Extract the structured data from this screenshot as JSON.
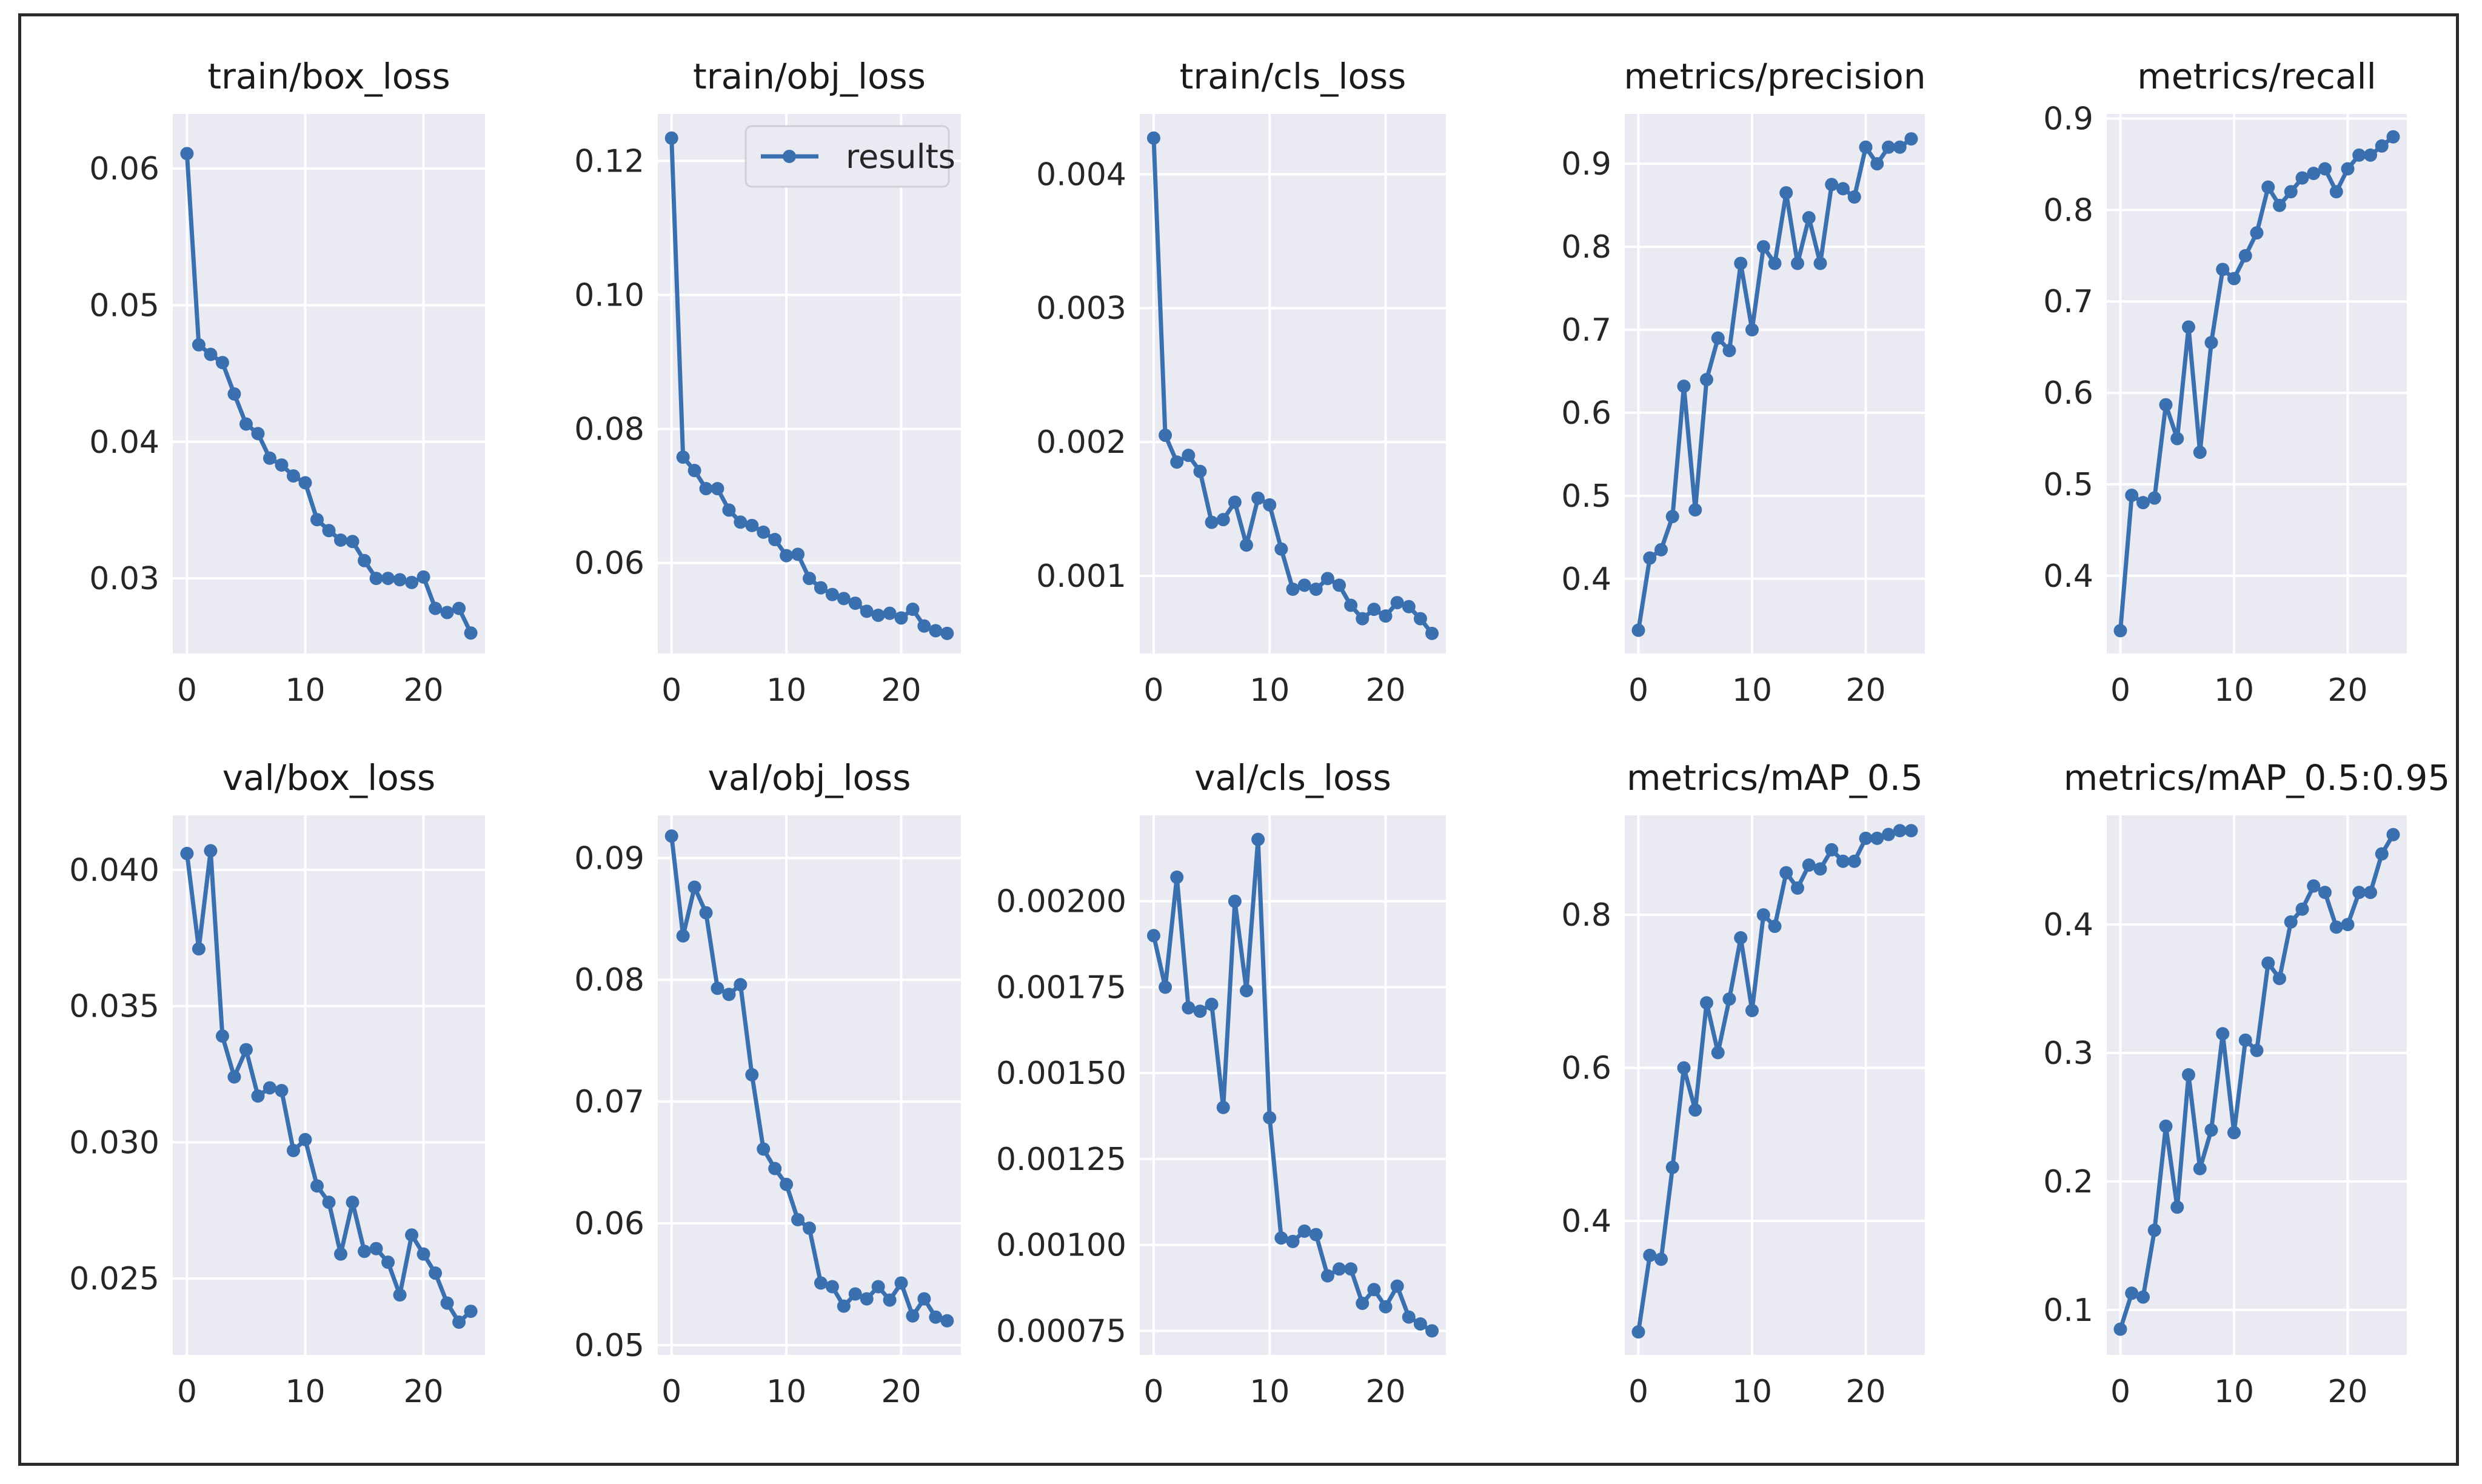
{
  "figure": {
    "legend_label": "results"
  },
  "colors": {
    "plot_bg": "#eaeaf2",
    "grid": "#ffffff",
    "line": "#3a6fb0"
  },
  "chart_data": [
    {
      "type": "line",
      "title": "train/box_loss",
      "x": [
        0,
        1,
        2,
        3,
        4,
        5,
        6,
        7,
        8,
        9,
        10,
        11,
        12,
        13,
        14,
        15,
        16,
        17,
        18,
        19,
        20,
        21,
        22,
        23,
        24
      ],
      "values": [
        0.0611,
        0.0471,
        0.0464,
        0.0458,
        0.0435,
        0.0413,
        0.0406,
        0.0388,
        0.0383,
        0.0375,
        0.037,
        0.0343,
        0.0335,
        0.0328,
        0.0327,
        0.0313,
        0.03,
        0.03,
        0.0299,
        0.0297,
        0.0301,
        0.0278,
        0.0275,
        0.0278,
        0.026
      ],
      "xlim": [
        -1.2,
        25.2
      ],
      "ylim": [
        0.0245,
        0.064
      ],
      "xticks": [
        0,
        10,
        20
      ],
      "xtick_labels": [
        "0",
        "10",
        "20"
      ],
      "yticks": [
        0.03,
        0.04,
        0.05,
        0.06
      ],
      "ytick_labels": [
        "0.03",
        "0.04",
        "0.05",
        "0.06"
      ]
    },
    {
      "type": "line",
      "title": "train/obj_loss",
      "legend": "top-right",
      "x": [
        0,
        1,
        2,
        3,
        4,
        5,
        6,
        7,
        8,
        9,
        10,
        11,
        12,
        13,
        14,
        15,
        16,
        17,
        18,
        19,
        20,
        21,
        22,
        23,
        24
      ],
      "values": [
        0.1234,
        0.0758,
        0.0738,
        0.0711,
        0.0711,
        0.0679,
        0.0661,
        0.0656,
        0.0646,
        0.0635,
        0.0611,
        0.0613,
        0.0577,
        0.0563,
        0.0553,
        0.0547,
        0.054,
        0.0528,
        0.0522,
        0.0525,
        0.0518,
        0.0531,
        0.0506,
        0.0499,
        0.0495
      ],
      "xlim": [
        -1.2,
        25.2
      ],
      "ylim": [
        0.0465,
        0.127
      ],
      "xticks": [
        0,
        10,
        20
      ],
      "xtick_labels": [
        "0",
        "10",
        "20"
      ],
      "yticks": [
        0.06,
        0.08,
        0.1,
        0.12
      ],
      "ytick_labels": [
        "0.06",
        "0.08",
        "0.10",
        "0.12"
      ]
    },
    {
      "type": "line",
      "title": "train/cls_loss",
      "x": [
        0,
        1,
        2,
        3,
        4,
        5,
        6,
        7,
        8,
        9,
        10,
        11,
        12,
        13,
        14,
        15,
        16,
        17,
        18,
        19,
        20,
        21,
        22,
        23,
        24
      ],
      "values": [
        0.00427,
        0.00205,
        0.00185,
        0.0019,
        0.00178,
        0.0014,
        0.00142,
        0.00155,
        0.00123,
        0.00158,
        0.00153,
        0.0012,
        0.0009,
        0.00093,
        0.0009,
        0.00098,
        0.00093,
        0.00078,
        0.00068,
        0.00075,
        0.0007,
        0.0008,
        0.00077,
        0.00068,
        0.00057
      ],
      "xlim": [
        -1.2,
        25.2
      ],
      "ylim": [
        0.00042,
        0.00445
      ],
      "xticks": [
        0,
        10,
        20
      ],
      "xtick_labels": [
        "0",
        "10",
        "20"
      ],
      "yticks": [
        0.001,
        0.002,
        0.003,
        0.004
      ],
      "ytick_labels": [
        "0.001",
        "0.002",
        "0.003",
        "0.004"
      ]
    },
    {
      "type": "line",
      "title": "metrics/precision",
      "x": [
        0,
        1,
        2,
        3,
        4,
        5,
        6,
        7,
        8,
        9,
        10,
        11,
        12,
        13,
        14,
        15,
        16,
        17,
        18,
        19,
        20,
        21,
        22,
        23,
        24
      ],
      "values": [
        0.338,
        0.425,
        0.435,
        0.475,
        0.632,
        0.483,
        0.64,
        0.69,
        0.675,
        0.78,
        0.7,
        0.8,
        0.78,
        0.865,
        0.78,
        0.835,
        0.78,
        0.875,
        0.87,
        0.86,
        0.92,
        0.9,
        0.92,
        0.92,
        0.93
      ],
      "xlim": [
        -1.2,
        25.2
      ],
      "ylim": [
        0.31,
        0.96
      ],
      "xticks": [
        0,
        10,
        20
      ],
      "xtick_labels": [
        "0",
        "10",
        "20"
      ],
      "yticks": [
        0.4,
        0.5,
        0.6,
        0.7,
        0.8,
        0.9
      ],
      "ytick_labels": [
        "0.4",
        "0.5",
        "0.6",
        "0.7",
        "0.8",
        "0.9"
      ]
    },
    {
      "type": "line",
      "title": "metrics/recall",
      "x": [
        0,
        1,
        2,
        3,
        4,
        5,
        6,
        7,
        8,
        9,
        10,
        11,
        12,
        13,
        14,
        15,
        16,
        17,
        18,
        19,
        20,
        21,
        22,
        23,
        24
      ],
      "values": [
        0.34,
        0.488,
        0.48,
        0.485,
        0.587,
        0.55,
        0.672,
        0.535,
        0.655,
        0.735,
        0.725,
        0.75,
        0.775,
        0.825,
        0.805,
        0.82,
        0.835,
        0.84,
        0.845,
        0.82,
        0.845,
        0.86,
        0.86,
        0.87,
        0.88
      ],
      "xlim": [
        -1.2,
        25.2
      ],
      "ylim": [
        0.315,
        0.905
      ],
      "xticks": [
        0,
        10,
        20
      ],
      "xtick_labels": [
        "0",
        "10",
        "20"
      ],
      "yticks": [
        0.4,
        0.5,
        0.6,
        0.7,
        0.8,
        0.9
      ],
      "ytick_labels": [
        "0.4",
        "0.5",
        "0.6",
        "0.7",
        "0.8",
        "0.9"
      ]
    },
    {
      "type": "line",
      "title": "val/box_loss",
      "x": [
        0,
        1,
        2,
        3,
        4,
        5,
        6,
        7,
        8,
        9,
        10,
        11,
        12,
        13,
        14,
        15,
        16,
        17,
        18,
        19,
        20,
        21,
        22,
        23,
        24
      ],
      "values": [
        0.0406,
        0.0371,
        0.0407,
        0.0339,
        0.0324,
        0.0334,
        0.0317,
        0.032,
        0.0319,
        0.0297,
        0.0301,
        0.0284,
        0.0278,
        0.0259,
        0.0278,
        0.026,
        0.0261,
        0.0256,
        0.0244,
        0.0266,
        0.0259,
        0.0252,
        0.0241,
        0.0234,
        0.0238
      ],
      "xlim": [
        -1.2,
        25.2
      ],
      "ylim": [
        0.0222,
        0.042
      ],
      "xticks": [
        0,
        10,
        20
      ],
      "xtick_labels": [
        "0",
        "10",
        "20"
      ],
      "yticks": [
        0.025,
        0.03,
        0.035,
        0.04
      ],
      "ytick_labels": [
        "0.025",
        "0.030",
        "0.035",
        "0.040"
      ]
    },
    {
      "type": "line",
      "title": "val/obj_loss",
      "x": [
        0,
        1,
        2,
        3,
        4,
        5,
        6,
        7,
        8,
        9,
        10,
        11,
        12,
        13,
        14,
        15,
        16,
        17,
        18,
        19,
        20,
        21,
        22,
        23,
        24
      ],
      "values": [
        0.0918,
        0.0836,
        0.0876,
        0.0855,
        0.0793,
        0.0788,
        0.0796,
        0.0722,
        0.0661,
        0.0645,
        0.0632,
        0.0603,
        0.0596,
        0.0551,
        0.0548,
        0.0532,
        0.0542,
        0.0538,
        0.0548,
        0.0537,
        0.0551,
        0.0524,
        0.0538,
        0.0523,
        0.052
      ],
      "xlim": [
        -1.2,
        25.2
      ],
      "ylim": [
        0.0492,
        0.0935
      ],
      "xticks": [
        0,
        10,
        20
      ],
      "xtick_labels": [
        "0",
        "10",
        "20"
      ],
      "yticks": [
        0.05,
        0.06,
        0.07,
        0.08,
        0.09
      ],
      "ytick_labels": [
        "0.05",
        "0.06",
        "0.07",
        "0.08",
        "0.09"
      ]
    },
    {
      "type": "line",
      "title": "val/cls_loss",
      "x": [
        0,
        1,
        2,
        3,
        4,
        5,
        6,
        7,
        8,
        9,
        10,
        11,
        12,
        13,
        14,
        15,
        16,
        17,
        18,
        19,
        20,
        21,
        22,
        23,
        24
      ],
      "values": [
        0.0019,
        0.00175,
        0.00207,
        0.00169,
        0.00168,
        0.0017,
        0.0014,
        0.002,
        0.00174,
        0.00218,
        0.00137,
        0.00102,
        0.00101,
        0.00104,
        0.00103,
        0.00091,
        0.00093,
        0.00093,
        0.00083,
        0.00087,
        0.00082,
        0.00088,
        0.00079,
        0.00077,
        0.00075
      ],
      "xlim": [
        -1.2,
        25.2
      ],
      "ylim": [
        0.00068,
        0.00225
      ],
      "xticks": [
        0,
        10,
        20
      ],
      "xtick_labels": [
        "0",
        "10",
        "20"
      ],
      "yticks": [
        0.00075,
        0.001,
        0.00125,
        0.0015,
        0.00175,
        0.002
      ],
      "ytick_labels": [
        "0.00075",
        "0.00100",
        "0.00125",
        "0.00150",
        "0.00175",
        "0.00200"
      ]
    },
    {
      "type": "line",
      "title": "metrics/mAP_0.5",
      "x": [
        0,
        1,
        2,
        3,
        4,
        5,
        6,
        7,
        8,
        9,
        10,
        11,
        12,
        13,
        14,
        15,
        16,
        17,
        18,
        19,
        20,
        21,
        22,
        23,
        24
      ],
      "values": [
        0.255,
        0.355,
        0.35,
        0.47,
        0.6,
        0.545,
        0.685,
        0.62,
        0.69,
        0.77,
        0.675,
        0.8,
        0.785,
        0.855,
        0.835,
        0.865,
        0.86,
        0.885,
        0.87,
        0.87,
        0.9,
        0.9,
        0.905,
        0.91,
        0.91
      ],
      "xlim": [
        -1.2,
        25.2
      ],
      "ylim": [
        0.225,
        0.93
      ],
      "xticks": [
        0,
        10,
        20
      ],
      "xtick_labels": [
        "0",
        "10",
        "20"
      ],
      "yticks": [
        0.4,
        0.6,
        0.8
      ],
      "ytick_labels": [
        "0.4",
        "0.6",
        "0.8"
      ]
    },
    {
      "type": "line",
      "title": "metrics/mAP_0.5:0.95",
      "x": [
        0,
        1,
        2,
        3,
        4,
        5,
        6,
        7,
        8,
        9,
        10,
        11,
        12,
        13,
        14,
        15,
        16,
        17,
        18,
        19,
        20,
        21,
        22,
        23,
        24
      ],
      "values": [
        0.085,
        0.113,
        0.11,
        0.162,
        0.243,
        0.18,
        0.283,
        0.21,
        0.24,
        0.315,
        0.238,
        0.31,
        0.302,
        0.37,
        0.358,
        0.402,
        0.412,
        0.43,
        0.425,
        0.398,
        0.4,
        0.425,
        0.425,
        0.455,
        0.47
      ],
      "xlim": [
        -1.2,
        25.2
      ],
      "ylim": [
        0.065,
        0.485
      ],
      "xticks": [
        0,
        10,
        20
      ],
      "xtick_labels": [
        "0",
        "10",
        "20"
      ],
      "yticks": [
        0.1,
        0.2,
        0.3,
        0.4
      ],
      "ytick_labels": [
        "0.1",
        "0.2",
        "0.3",
        "0.4"
      ]
    }
  ]
}
